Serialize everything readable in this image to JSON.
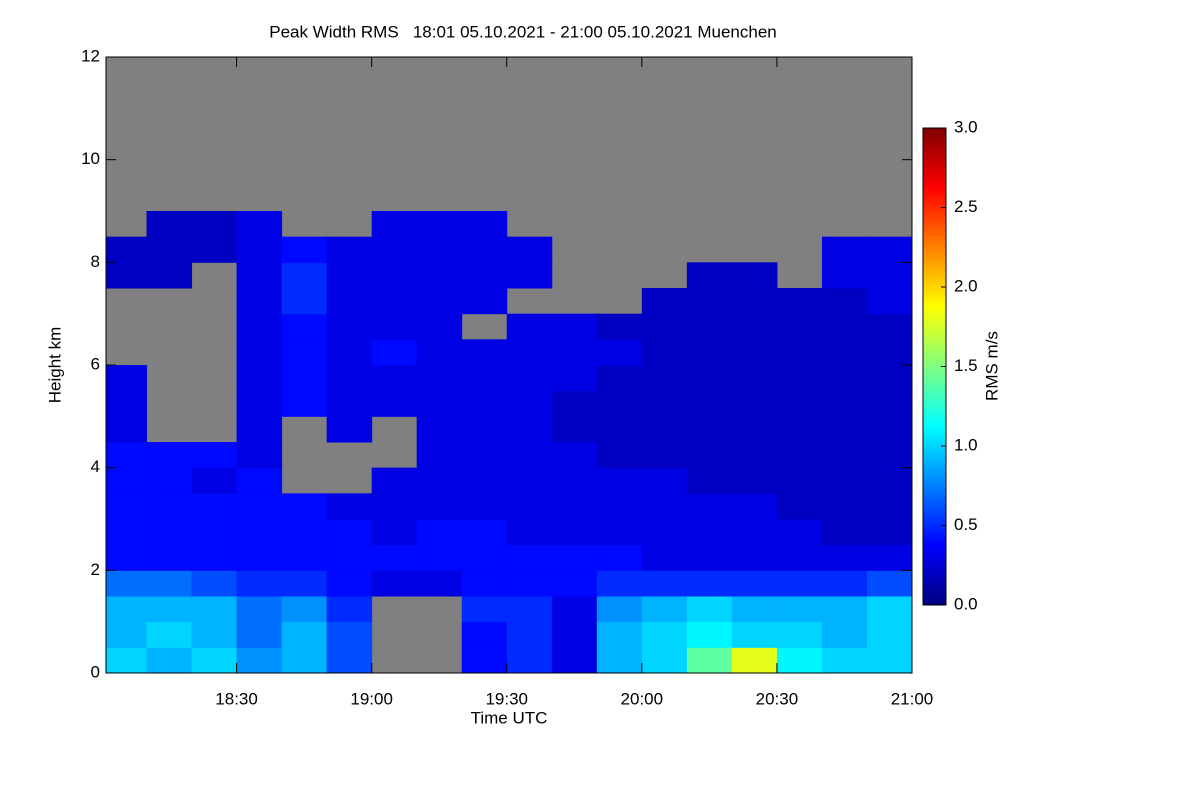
{
  "chart_data": {
    "type": "heatmap",
    "title": "Peak Width RMS   18:01 05.10.2021 - 21:00 05.10.2021 Muenchen",
    "x_label": "Time UTC",
    "y_label": "Height km",
    "colorbar_label": "RMS m/s",
    "x": [
      1081,
      1090,
      1100,
      1110,
      1120,
      1130,
      1140,
      1150,
      1160,
      1170,
      1180,
      1190,
      1200,
      1210,
      1220,
      1230,
      1240,
      1250,
      1260
    ],
    "y": [
      0,
      0.5,
      1,
      1.5,
      2,
      2.5,
      3,
      3.5,
      4,
      4.5,
      5,
      5.5,
      6,
      6.5,
      7,
      7.5,
      8,
      8.5,
      9
    ],
    "z": [
      [
        1.0,
        0.9,
        1.0,
        0.8,
        0.9,
        0.6,
        null,
        null,
        0.4,
        0.5,
        0.3,
        0.9,
        1.0,
        1.4,
        1.8,
        1.1,
        1.0,
        1.0
      ],
      [
        0.9,
        1.0,
        0.9,
        0.7,
        0.9,
        0.6,
        null,
        null,
        0.4,
        0.5,
        0.3,
        0.9,
        1.0,
        1.1,
        1.0,
        1.0,
        0.9,
        1.0
      ],
      [
        0.9,
        0.9,
        0.9,
        0.7,
        0.8,
        0.5,
        null,
        null,
        0.5,
        0.5,
        0.3,
        0.8,
        0.9,
        1.0,
        0.9,
        0.9,
        0.9,
        1.0
      ],
      [
        0.7,
        0.7,
        0.6,
        0.5,
        0.5,
        0.4,
        0.3,
        0.3,
        0.4,
        0.4,
        0.4,
        0.5,
        0.5,
        0.5,
        0.5,
        0.5,
        0.5,
        0.6
      ],
      [
        0.4,
        0.4,
        0.4,
        0.4,
        0.4,
        0.4,
        0.4,
        0.4,
        0.4,
        0.4,
        0.4,
        0.4,
        0.3,
        0.3,
        0.3,
        0.3,
        0.3,
        0.3
      ],
      [
        0.4,
        0.4,
        0.4,
        0.4,
        0.4,
        0.4,
        0.3,
        0.4,
        0.4,
        0.3,
        0.3,
        0.3,
        0.3,
        0.3,
        0.3,
        0.3,
        0.2,
        0.2
      ],
      [
        0.4,
        0.4,
        0.4,
        0.4,
        0.4,
        0.3,
        0.3,
        0.3,
        0.3,
        0.3,
        0.3,
        0.3,
        0.3,
        0.3,
        0.3,
        0.2,
        0.2,
        0.2
      ],
      [
        0.4,
        0.4,
        0.3,
        0.4,
        null,
        null,
        0.3,
        0.3,
        0.3,
        0.3,
        0.3,
        0.3,
        0.3,
        0.2,
        0.2,
        0.2,
        0.2,
        0.2
      ],
      [
        0.4,
        0.4,
        0.4,
        0.3,
        null,
        null,
        null,
        0.3,
        0.3,
        0.3,
        0.3,
        0.2,
        0.2,
        0.2,
        0.2,
        0.2,
        0.2,
        0.2
      ],
      [
        0.3,
        null,
        null,
        0.3,
        null,
        0.3,
        null,
        0.3,
        0.3,
        0.3,
        0.2,
        0.2,
        0.2,
        0.2,
        0.2,
        0.2,
        0.2,
        0.2
      ],
      [
        0.3,
        null,
        null,
        0.3,
        0.4,
        0.3,
        0.3,
        0.3,
        0.3,
        0.3,
        0.2,
        0.2,
        0.2,
        0.2,
        0.2,
        0.2,
        0.2,
        0.2
      ],
      [
        0.3,
        null,
        null,
        0.3,
        0.4,
        0.3,
        0.3,
        0.3,
        0.3,
        0.3,
        0.3,
        0.2,
        0.2,
        0.2,
        0.2,
        0.2,
        0.2,
        0.2
      ],
      [
        null,
        null,
        null,
        0.3,
        0.4,
        0.3,
        0.4,
        0.3,
        0.3,
        0.3,
        0.3,
        0.3,
        0.2,
        0.2,
        0.2,
        0.2,
        0.2,
        0.2
      ],
      [
        null,
        null,
        null,
        0.3,
        0.4,
        0.3,
        0.3,
        0.3,
        null,
        0.3,
        0.3,
        0.2,
        0.2,
        0.2,
        0.2,
        0.2,
        0.2,
        0.2
      ],
      [
        null,
        null,
        null,
        0.3,
        0.5,
        0.3,
        0.3,
        0.3,
        0.3,
        null,
        null,
        null,
        0.2,
        0.2,
        0.2,
        0.2,
        0.2,
        0.3
      ],
      [
        0.2,
        0.2,
        null,
        0.3,
        0.5,
        0.3,
        0.3,
        0.3,
        0.3,
        0.3,
        null,
        null,
        null,
        0.2,
        0.2,
        null,
        0.3,
        0.3
      ],
      [
        0.2,
        0.2,
        0.2,
        0.3,
        0.4,
        0.3,
        0.3,
        0.3,
        0.3,
        0.3,
        null,
        null,
        null,
        null,
        null,
        null,
        0.3,
        0.3
      ],
      [
        null,
        0.2,
        0.2,
        0.3,
        null,
        null,
        0.3,
        0.3,
        0.3,
        null,
        null,
        null,
        null,
        null,
        null,
        null,
        null,
        null
      ]
    ],
    "xlim": [
      1081,
      1260
    ],
    "xticks": [
      {
        "value": 1110,
        "label": "18:30"
      },
      {
        "value": 1140,
        "label": "19:00"
      },
      {
        "value": 1170,
        "label": "19:30"
      },
      {
        "value": 1200,
        "label": "20:00"
      },
      {
        "value": 1230,
        "label": "20:30"
      },
      {
        "value": 1260,
        "label": "21:00"
      }
    ],
    "ylim": [
      0,
      12
    ],
    "yticks": [
      0,
      2,
      4,
      6,
      8,
      10,
      12
    ],
    "clim": [
      0,
      3
    ],
    "cticks": [
      {
        "value": 0,
        "label": "0.0"
      },
      {
        "value": 0.5,
        "label": "0.5"
      },
      {
        "value": 1,
        "label": "1.0"
      },
      {
        "value": 1.5,
        "label": "1.5"
      },
      {
        "value": 2,
        "label": "2.0"
      },
      {
        "value": 2.5,
        "label": "2.5"
      },
      {
        "value": 3,
        "label": "3.0"
      }
    ],
    "colormap": [
      "#00007f",
      "#0000ff",
      "#0080ff",
      "#00ffff",
      "#80ff80",
      "#ffff00",
      "#ff8000",
      "#ff0000",
      "#7f0000"
    ],
    "missing_color": "#808080"
  }
}
